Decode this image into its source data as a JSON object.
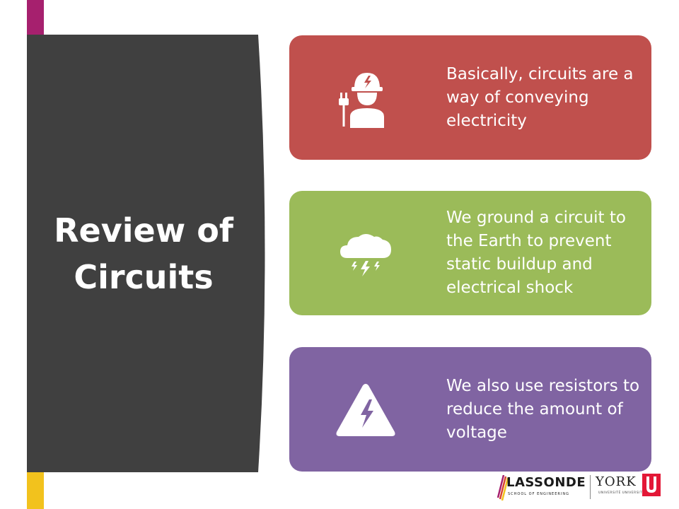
{
  "slide": {
    "title": "Review of Circuits"
  },
  "cards": [
    {
      "text": "Basically, circuits are a way of conveying electricity",
      "icon": "electrician-icon",
      "color": "#c0504d"
    },
    {
      "text": "We ground a circuit to the Earth to prevent static buildup and electrical shock",
      "icon": "storm-cloud-icon",
      "color": "#9bbb59"
    },
    {
      "text": "We also use resistors to reduce the amount of voltage",
      "icon": "high-voltage-warning-icon",
      "color": "#8064a2"
    }
  ],
  "logo": {
    "lassonde": "LASSONDE",
    "lassonde_sub": "SCHOOL OF ENGINEERING",
    "york": "YORK",
    "york_sub": "UNIVERSITÉ UNIVERSITY"
  },
  "colors": {
    "title_panel": "#404040",
    "stripes": [
      "#a6206e",
      "#d9452e",
      "#2e4b8f",
      "#4aa88b",
      "#f2c21d"
    ]
  }
}
